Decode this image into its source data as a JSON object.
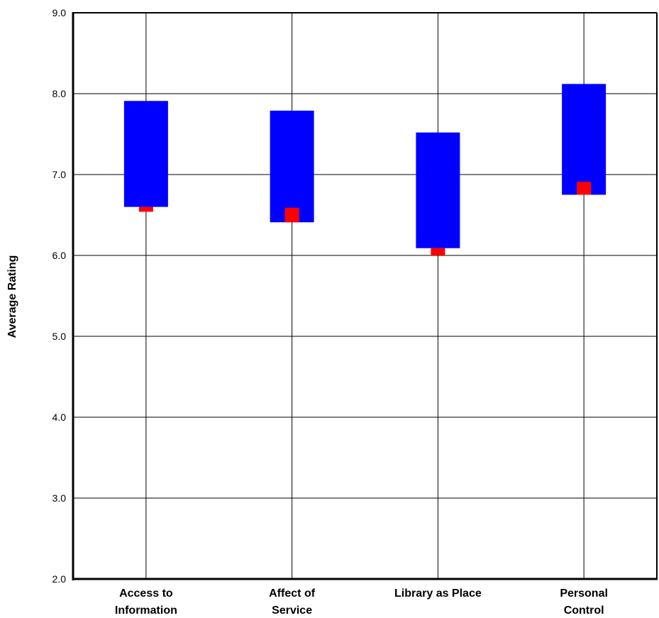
{
  "chart_data": {
    "type": "bar",
    "subtype": "floating-range-with-marker",
    "title": "",
    "xlabel": "",
    "ylabel": "Average Rating",
    "ylim": [
      2.0,
      9.0
    ],
    "yticks": [
      "2.0",
      "3.0",
      "4.0",
      "5.0",
      "6.0",
      "7.0",
      "8.0",
      "9.0"
    ],
    "grid": true,
    "legend": "none",
    "categories": [
      {
        "line1": "Access to",
        "line2": "Information",
        "range_low": 6.6,
        "range_high": 7.91,
        "marker_low": 6.54,
        "marker_high": 6.6
      },
      {
        "line1": "Affect of",
        "line2": "Service",
        "range_low": 6.41,
        "range_high": 7.79,
        "marker_low": 6.41,
        "marker_high": 6.59
      },
      {
        "line1": "Library as Place",
        "line2": "",
        "range_low": 6.09,
        "range_high": 7.52,
        "marker_low": 6.0,
        "marker_high": 6.09
      },
      {
        "line1": "Personal",
        "line2": "Control",
        "range_low": 6.75,
        "range_high": 8.12,
        "marker_low": 6.75,
        "marker_high": 6.91
      }
    ],
    "colors": {
      "range": "#0000ff",
      "marker": "#ff0000",
      "grid": "#000000"
    }
  }
}
